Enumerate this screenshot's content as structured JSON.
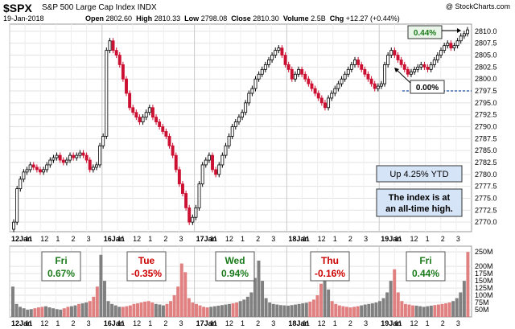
{
  "header": {
    "symbol": "$SPX",
    "description": "S&P 500 Large Cap Index",
    "exchange": "INDX",
    "copyright": "@ StockCharts.com",
    "date": "19-Jan-2018",
    "open_label": "Open",
    "open": "2802.60",
    "high_label": "High",
    "high": "2810.33",
    "low_label": "Low",
    "low": "2798.08",
    "close_label": "Close",
    "close": "2810.30",
    "volume_label": "Volume",
    "volume": "2.5B",
    "chg_label": "Chg",
    "chg": "+12.27 (+0.44%)"
  },
  "annotations": {
    "ytd": "Up 4.25% YTD",
    "ath_line1": "The index is at",
    "ath_line2": "an all-time high.",
    "pct_top": "0.44%",
    "pct_zero": "0.00%"
  },
  "day_labels": [
    {
      "day": "Fri",
      "pct": "0.67%",
      "color": "#1a7a1a"
    },
    {
      "day": "Tue",
      "pct": "-0.35%",
      "color": "#cc0000"
    },
    {
      "day": "Wed",
      "pct": "0.94%",
      "color": "#1a7a1a"
    },
    {
      "day": "Thu",
      "pct": "-0.16%",
      "color": "#cc0000"
    },
    {
      "day": "Fri",
      "pct": "0.44%",
      "color": "#1a7a1a"
    }
  ],
  "colors": {
    "up": "#000000",
    "down": "#cc1133",
    "vol_up": "#808080",
    "vol_down": "#e08080",
    "accent": "#1f4ea1"
  },
  "chart_data": [
    {
      "type": "candlestick",
      "title": "$SPX S&P 500 Large Cap Index INDX",
      "price_ticks": [
        2770,
        2772.5,
        2775,
        2777.5,
        2780,
        2782.5,
        2785,
        2787.5,
        2790,
        2792.5,
        2795,
        2797.5,
        2800,
        2802.5,
        2805,
        2807.5,
        2810
      ],
      "tick_labels": [
        "2770.0",
        "2772.5",
        "2775.0",
        "2777.5",
        "2780.0",
        "2782.5",
        "2785.0",
        "2787.5",
        "2790.0",
        "2792.5",
        "2795.0",
        "2797.5",
        "2800.0",
        "2802.5",
        "2805.0",
        "2807.5",
        "2810.0"
      ],
      "ylim": [
        2768,
        2811.5
      ],
      "x_labels": [
        "12Jan",
        "11",
        "12",
        "1",
        "2",
        "3",
        "16Jan",
        "11",
        "12",
        "1",
        "2",
        "3",
        "17Jan",
        "11",
        "12",
        "1",
        "2",
        "3",
        "18Jan",
        "11",
        "12",
        "1",
        "2",
        "3",
        "19Jan",
        "11",
        "12",
        "1",
        "2",
        "3"
      ],
      "reference_line": 2797.5,
      "close_series": [
        2770,
        2777,
        2779,
        2780.5,
        2781,
        2782,
        2781.5,
        2781,
        2780.5,
        2781,
        2782,
        2783,
        2783.5,
        2784,
        2783,
        2782.5,
        2783,
        2784,
        2783.5,
        2784,
        2784.5,
        2784,
        2783,
        2781,
        2781.5,
        2782,
        2786,
        2788,
        2806,
        2808,
        2806,
        2805,
        2803,
        2800,
        2797,
        2794,
        2793,
        2792,
        2791,
        2792,
        2793,
        2794,
        2792,
        2791,
        2790,
        2789,
        2788,
        2786,
        2784,
        2781,
        2778,
        2776,
        2773,
        2770,
        2771,
        2773,
        2778,
        2782,
        2783,
        2784,
        2781,
        2780,
        2782,
        2784,
        2786,
        2788,
        2790,
        2791,
        2792,
        2793,
        2795,
        2797,
        2798,
        2800,
        2801,
        2802,
        2803,
        2804,
        2805,
        2806,
        2806.5,
        2805,
        2803,
        2802,
        2800,
        2801,
        2802,
        2801,
        2800,
        2799,
        2798,
        2797,
        2796,
        2795,
        2794,
        2796,
        2797,
        2798,
        2799,
        2800,
        2801,
        2802,
        2803,
        2804,
        2803,
        2802,
        2801,
        2800,
        2799,
        2798,
        2798.5,
        2799,
        2803,
        2805,
        2806,
        2805,
        2804,
        2803,
        2802,
        2801,
        2801.5,
        2802,
        2802.5,
        2803,
        2802.5,
        2802,
        2803,
        2804,
        2805,
        2806,
        2807,
        2807.5,
        2806.5,
        2807,
        2808,
        2809,
        2809.5,
        2810.3
      ],
      "volume_ticks": [
        "50M",
        "75M",
        "100M",
        "125M",
        "150M",
        "175M",
        "200M",
        "250M"
      ]
    },
    {
      "type": "bar",
      "title": "Volume",
      "volume_tick_values": [
        50,
        75,
        100,
        125,
        150,
        175,
        200,
        250
      ],
      "ylim": [
        25,
        270
      ],
      "volume_series": [
        130,
        70,
        60,
        55,
        50,
        52,
        55,
        58,
        60,
        62,
        58,
        55,
        52,
        50,
        55,
        60,
        62,
        65,
        70,
        72,
        75,
        80,
        95,
        130,
        240,
        150,
        80,
        70,
        65,
        60,
        60,
        62,
        65,
        70,
        72,
        75,
        78,
        80,
        75,
        70,
        68,
        65,
        70,
        80,
        100,
        130,
        210,
        180,
        90,
        75,
        70,
        65,
        60,
        58,
        60,
        62,
        64,
        66,
        68,
        70,
        72,
        75,
        80,
        85,
        95,
        110,
        160,
        220,
        150,
        90,
        75,
        70,
        68,
        66,
        65,
        64,
        66,
        68,
        70,
        72,
        74,
        78,
        85,
        100,
        140,
        200,
        120,
        80,
        70,
        65,
        62,
        60,
        58,
        60,
        62,
        65,
        68,
        70,
        72,
        75,
        80,
        90,
        110,
        150,
        190,
        110,
        80,
        70,
        68,
        65,
        64,
        62,
        60,
        62,
        64,
        66,
        68,
        70,
        72,
        75,
        80,
        90,
        110,
        150,
        250
      ]
    }
  ]
}
